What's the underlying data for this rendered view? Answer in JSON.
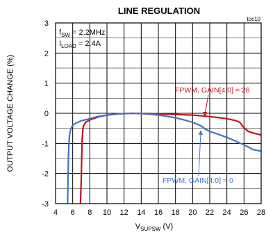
{
  "chart_data": {
    "type": "line",
    "title": "LINE REGULATION",
    "figure_id": "toc10",
    "xlabel": {
      "main": "V",
      "sub": "SUPSW",
      "unit": " (V)"
    },
    "ylabel": "OUTPUT VOLTAGE CHANGE (%)",
    "xlim": [
      4,
      28
    ],
    "ylim": [
      -3,
      3
    ],
    "xticks": [
      4,
      6,
      8,
      10,
      12,
      14,
      16,
      18,
      20,
      22,
      24,
      26,
      28
    ],
    "yticks": [
      3,
      2,
      1,
      0,
      -1,
      -2,
      -3
    ],
    "grid": true,
    "conditions": [
      {
        "main": "f",
        "sub": "SW",
        "rest": " = 2.2MHz"
      },
      {
        "main": "I",
        "sub": "LOAD",
        "rest": " = 2.4A"
      }
    ],
    "series": [
      {
        "name": "FPWM, GAIN[4:0] = 28",
        "color": "#c0141e",
        "x": [
          6.9,
          7.0,
          7.1,
          7.2,
          7.3,
          7.5,
          8,
          9,
          10,
          11,
          12,
          13,
          14,
          15,
          16,
          17,
          18,
          19,
          20,
          21,
          22,
          23,
          24,
          25,
          25.5,
          26,
          26.5,
          27,
          28
        ],
        "y": [
          -3.0,
          -2.2,
          -0.9,
          -0.5,
          -0.4,
          -0.3,
          -0.22,
          -0.12,
          -0.06,
          -0.03,
          -0.01,
          0.0,
          -0.005,
          -0.01,
          -0.02,
          -0.03,
          -0.04,
          -0.05,
          -0.06,
          -0.08,
          -0.11,
          -0.14,
          -0.18,
          -0.24,
          -0.3,
          -0.48,
          -0.6,
          -0.65,
          -0.72
        ]
      },
      {
        "name": "FPWM, GAIN[4:0] = 0",
        "color": "#4472c4",
        "x": [
          5.4,
          5.5,
          5.6,
          5.7,
          5.9,
          6.2,
          6.6,
          7,
          8,
          9,
          10,
          11,
          12,
          13,
          14,
          15,
          16,
          17,
          18,
          19,
          20,
          21,
          21.5,
          22,
          23,
          24,
          25,
          26,
          26.5,
          27,
          28
        ],
        "y": [
          -3.0,
          -1.5,
          -0.8,
          -0.6,
          -0.45,
          -0.35,
          -0.3,
          -0.25,
          -0.18,
          -0.1,
          -0.06,
          -0.03,
          -0.01,
          0.0,
          -0.01,
          -0.03,
          -0.06,
          -0.1,
          -0.15,
          -0.22,
          -0.3,
          -0.42,
          -0.53,
          -0.6,
          -0.7,
          -0.8,
          -0.92,
          -1.05,
          -1.12,
          -1.2,
          -1.26
        ]
      }
    ],
    "annotations": [
      {
        "text": "FPWM, GAIN[4:0] = 28",
        "series": 0
      },
      {
        "text": "FPWM, GAIN[4:0] = 0",
        "series": 1
      }
    ]
  }
}
